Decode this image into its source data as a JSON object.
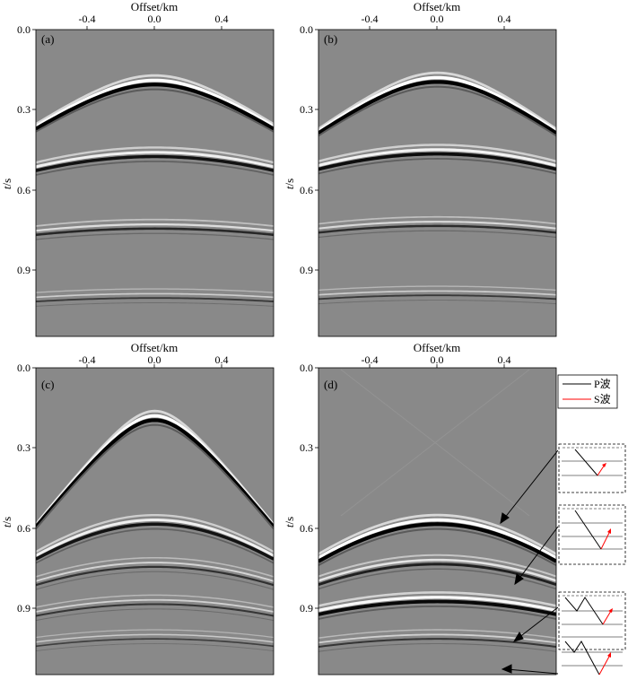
{
  "figure": {
    "xlabel": "Offset/km",
    "ylabel_italic": "t",
    "ylabel_unit": "/s",
    "xticks": [
      "-0.4",
      "0.0",
      "0.4"
    ],
    "yticks": [
      "0.0",
      "0.3",
      "0.6",
      "0.9"
    ]
  },
  "chart_data": [
    {
      "type": "heatmap",
      "panel": "(a)",
      "xlabel": "Offset/km",
      "ylabel": "t/s",
      "xlim": [
        -0.62,
        0.62
      ],
      "ylim": [
        0.0,
        1.15
      ],
      "xticks": [
        -0.4,
        0.0,
        0.4
      ],
      "yticks": [
        0.0,
        0.3,
        0.6,
        0.9
      ],
      "events": [
        {
          "t0": 0.19,
          "v": 2.0,
          "amplitude": 1.0,
          "kind": "P"
        },
        {
          "t0": 0.46,
          "v": 2.7,
          "amplitude": 0.8,
          "kind": "P"
        },
        {
          "t0": 0.73,
          "v": 3.3,
          "amplitude": 0.55,
          "kind": "P"
        },
        {
          "t0": 0.99,
          "v": 3.8,
          "amplitude": 0.35,
          "kind": "P"
        }
      ]
    },
    {
      "type": "heatmap",
      "panel": "(b)",
      "xlabel": "Offset/km",
      "ylabel": "t/s",
      "xlim": [
        -0.62,
        0.62
      ],
      "ylim": [
        0.0,
        1.15
      ],
      "xticks": [
        -0.4,
        0.0,
        0.4
      ],
      "yticks": [
        0.0,
        0.3,
        0.6,
        0.9
      ],
      "events": [
        {
          "t0": 0.18,
          "v": 1.85,
          "amplitude": 1.0,
          "kind": "P"
        },
        {
          "t0": 0.45,
          "v": 2.6,
          "amplitude": 0.85,
          "kind": "P"
        },
        {
          "t0": 0.72,
          "v": 3.2,
          "amplitude": 0.5,
          "kind": "P"
        },
        {
          "t0": 0.98,
          "v": 3.7,
          "amplitude": 0.35,
          "kind": "P"
        }
      ]
    },
    {
      "type": "heatmap",
      "panel": "(c)",
      "xlabel": "Offset/km",
      "ylabel": "t/s",
      "xlim": [
        -0.62,
        0.62
      ],
      "ylim": [
        0.0,
        1.15
      ],
      "xticks": [
        -0.4,
        0.0,
        0.4
      ],
      "yticks": [
        0.0,
        0.3,
        0.6,
        0.9
      ],
      "events": [
        {
          "t0": 0.18,
          "v": 1.1,
          "amplitude": 1.0,
          "kind": "P"
        },
        {
          "t0": 0.57,
          "v": 1.5,
          "amplitude": 0.8,
          "kind": "P"
        },
        {
          "t0": 0.73,
          "v": 1.9,
          "amplitude": 0.45,
          "kind": "P"
        },
        {
          "t0": 0.87,
          "v": 2.2,
          "amplitude": 0.4,
          "kind": "P"
        },
        {
          "t0": 1.0,
          "v": 2.6,
          "amplitude": 0.3,
          "kind": "P"
        }
      ]
    },
    {
      "type": "heatmap",
      "panel": "(d)",
      "xlabel": "Offset/km",
      "ylabel": "t/s",
      "xlim": [
        -0.62,
        0.62
      ],
      "ylim": [
        0.0,
        1.15
      ],
      "xticks": [
        -0.4,
        0.0,
        0.4
      ],
      "yticks": [
        0.0,
        0.3,
        0.6,
        0.9
      ],
      "events": [
        {
          "t0": 0.57,
          "v": 1.45,
          "amplitude": 1.0,
          "kind": "converted"
        },
        {
          "t0": 0.72,
          "v": 1.8,
          "amplitude": 0.65,
          "kind": "converted"
        },
        {
          "t0": 0.86,
          "v": 2.1,
          "amplitude": 0.9,
          "kind": "converted"
        },
        {
          "t0": 1.0,
          "v": 2.5,
          "amplitude": 0.4,
          "kind": "converted"
        }
      ],
      "legend": [
        {
          "label": "P波",
          "color": "#000000"
        },
        {
          "label": "S波",
          "color": "#ff0000"
        }
      ]
    }
  ]
}
